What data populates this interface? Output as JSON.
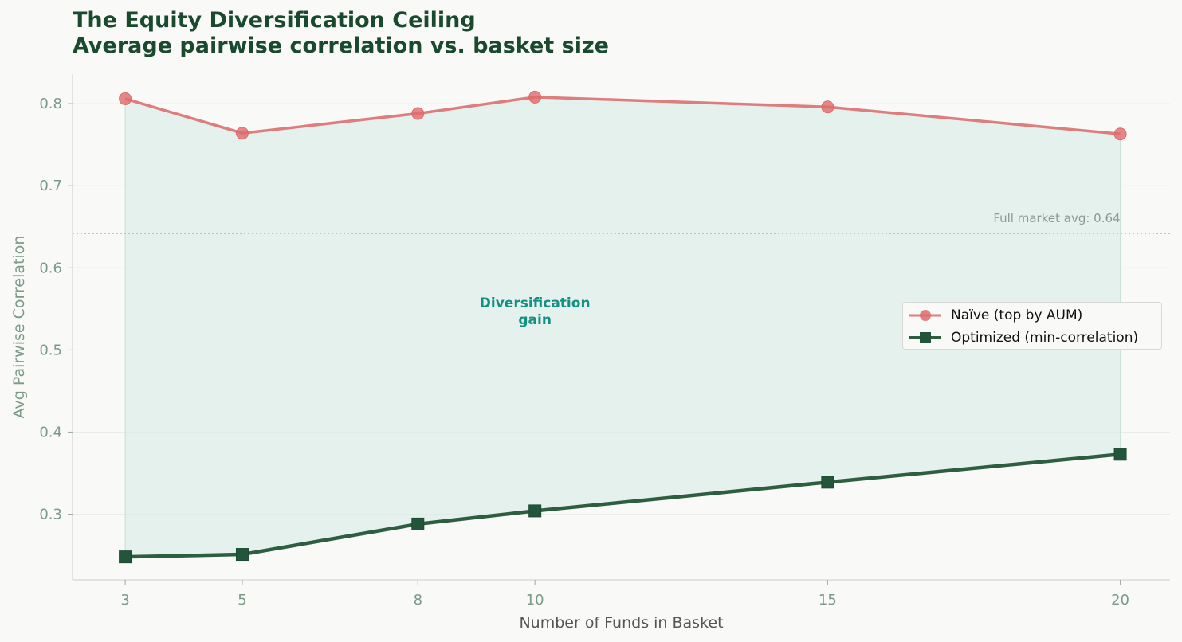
{
  "title_line1": "The Equity Diversification Ceiling",
  "title_line2": "Average pairwise correlation vs. basket size",
  "colors": {
    "naive": "#de7d7d",
    "naive_marker": "#e06a6a",
    "optimized": "#2e5e40",
    "optimized_marker": "#22553a",
    "fill": "#d6ebe4",
    "title": "#1a4a2e",
    "gain_text": "#138f84"
  },
  "chart_data": {
    "type": "line",
    "x": [
      3,
      5,
      8,
      10,
      15,
      20
    ],
    "series": [
      {
        "name": "Naïve (top by AUM)",
        "marker": "circle",
        "values": [
          0.806,
          0.764,
          0.788,
          0.808,
          0.796,
          0.763
        ]
      },
      {
        "name": "Optimized (min-correlation)",
        "marker": "square",
        "values": [
          0.248,
          0.251,
          0.288,
          0.304,
          0.339,
          0.373
        ]
      }
    ],
    "xlabel": "Number of Funds in Basket",
    "ylabel": "Avg Pairwise Correlation",
    "xticks": [
      "3",
      "5",
      "8",
      "10",
      "15",
      "20"
    ],
    "yticks": [
      "0.3",
      "0.4",
      "0.5",
      "0.6",
      "0.7",
      "0.8"
    ],
    "ytick_values": [
      0.3,
      0.4,
      0.5,
      0.6,
      0.7,
      0.8
    ],
    "xlim": [
      2.1,
      20.85
    ],
    "ylim": [
      0.22,
      0.836
    ],
    "reference_line": {
      "value": 0.642,
      "label": "Full market avg: 0.64"
    },
    "annotation": {
      "line1": "Diversification",
      "line2": "gain",
      "x": 10,
      "y": 0.55
    },
    "shaded_region": "between series",
    "grid": "horizontal",
    "legend_position": "center-right"
  }
}
